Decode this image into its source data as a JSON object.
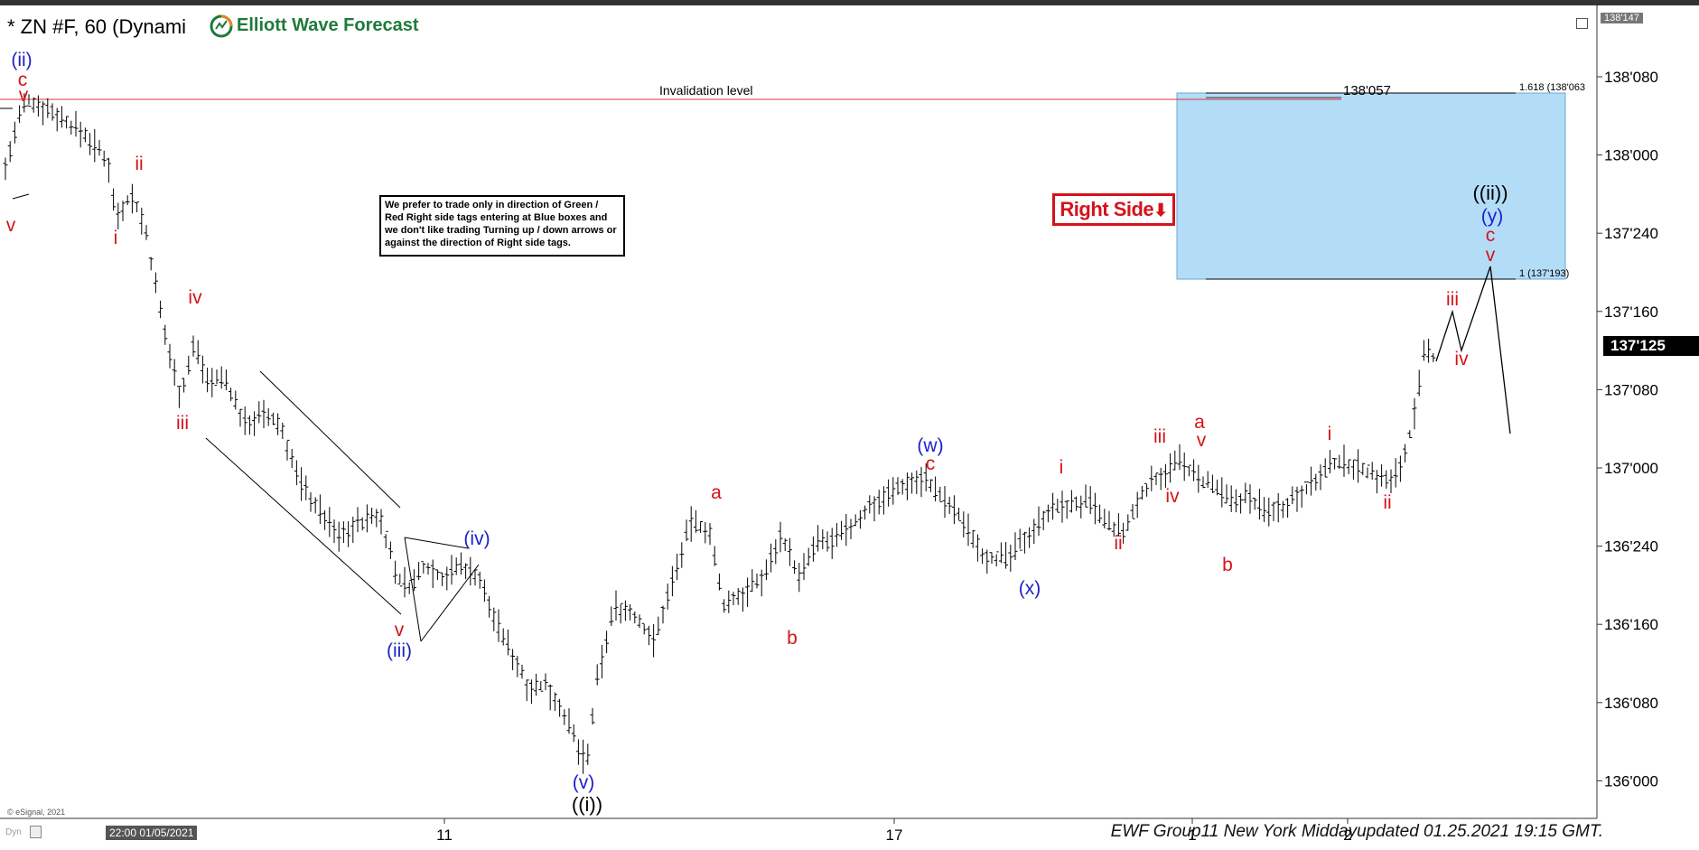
{
  "header": {
    "title": "* ZN #F, 60 (Dynami",
    "brand": "Elliott Wave Forecast",
    "top_price_tag": "138'147"
  },
  "note": "We prefer to trade only in direction of Green / Red Right side tags entering at Blue boxes and we don't like trading Turning up / down arrows or against the direction of Right side tags.",
  "right_side_tag": "Right Side",
  "footer": {
    "copyright": "© eSignal, 2021",
    "dyn": "Dyn",
    "date_tag": "22:00 01/05/2021",
    "text": "EWF Group11 New York Middayupdated 01.25.2021 19:15 GMT."
  },
  "colors": {
    "red": "#d4131b",
    "blue": "#1d22c8",
    "black": "#000000",
    "box": "#b3dcf7",
    "invalidation": "#e0313a",
    "brand": "#1f7a3a"
  },
  "chart_data": {
    "type": "ohlc_bar",
    "instrument": "ZN #F",
    "timeframe": "60",
    "y_tick_labels": [
      "138'080",
      "138'000",
      "137'240",
      "137'160",
      "137'080",
      "137'000",
      "136'240",
      "136'160",
      "136'080",
      "136'000"
    ],
    "x_tick_labels": [
      "11",
      "17",
      "1",
      "2"
    ],
    "last_price": "137'125",
    "invalidation": {
      "label": "Invalidation level",
      "price_label": "138'057"
    },
    "blue_box": {
      "top_label": "1.618 (138'063",
      "bottom_label": "1 (137'193)"
    },
    "wave_labels": [
      {
        "text": "(ii)",
        "color": "blue"
      },
      {
        "text": "c",
        "color": "red"
      },
      {
        "text": "v",
        "color": "red"
      },
      {
        "text": "v",
        "color": "red"
      },
      {
        "text": "i",
        "color": "red"
      },
      {
        "text": "ii",
        "color": "red"
      },
      {
        "text": "iii",
        "color": "red"
      },
      {
        "text": "iv",
        "color": "red"
      },
      {
        "text": "v",
        "color": "red"
      },
      {
        "text": "(iii)",
        "color": "blue"
      },
      {
        "text": "(iv)",
        "color": "blue"
      },
      {
        "text": "(v)",
        "color": "blue"
      },
      {
        "text": "((i))",
        "color": "black"
      },
      {
        "text": "a",
        "color": "red"
      },
      {
        "text": "b",
        "color": "red"
      },
      {
        "text": "(w)",
        "color": "blue"
      },
      {
        "text": "c",
        "color": "red"
      },
      {
        "text": "(x)",
        "color": "blue"
      },
      {
        "text": "i",
        "color": "red"
      },
      {
        "text": "ii",
        "color": "red"
      },
      {
        "text": "iii",
        "color": "red"
      },
      {
        "text": "iv",
        "color": "red"
      },
      {
        "text": "a",
        "color": "red"
      },
      {
        "text": "v",
        "color": "red"
      },
      {
        "text": "b",
        "color": "red"
      },
      {
        "text": "i",
        "color": "red"
      },
      {
        "text": "ii",
        "color": "red"
      },
      {
        "text": "iii",
        "color": "red"
      },
      {
        "text": "iv",
        "color": "red"
      },
      {
        "text": "((ii))",
        "color": "black"
      },
      {
        "text": "(y)",
        "color": "blue"
      },
      {
        "text": "c",
        "color": "red"
      },
      {
        "text": "v",
        "color": "red"
      }
    ]
  }
}
